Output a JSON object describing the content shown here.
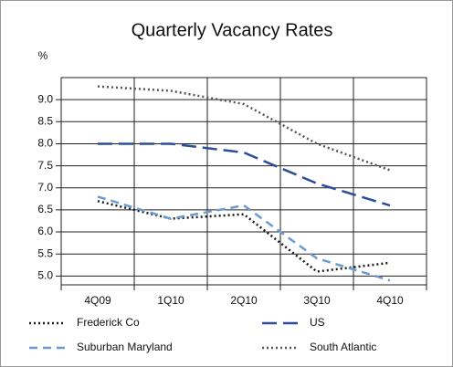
{
  "chart_data": {
    "type": "line",
    "title": "Quarterly Vacancy Rates",
    "y_unit": "%",
    "categories": [
      "4Q09",
      "1Q10",
      "2Q10",
      "3Q10",
      "4Q10"
    ],
    "series": [
      {
        "name": "Frederick Co",
        "color": "#1a1a1a",
        "line_style": "dotted",
        "values": [
          6.7,
          6.3,
          6.4,
          5.1,
          5.3
        ]
      },
      {
        "name": "US",
        "color": "#2a4d9b",
        "line_style": "long-dash",
        "values": [
          8.0,
          8.0,
          7.8,
          7.1,
          6.6
        ]
      },
      {
        "name": "Suburban Maryland",
        "color": "#6a9bcf",
        "line_style": "dash",
        "values": [
          6.8,
          6.3,
          6.6,
          5.4,
          4.9
        ]
      },
      {
        "name": "South Atlantic",
        "color": "#555555",
        "line_style": "dotted",
        "values": [
          9.3,
          9.2,
          8.9,
          8.0,
          7.4
        ]
      }
    ],
    "ylim": [
      4.8,
      9.5
    ],
    "yticks": [
      {
        "value": 5,
        "label": "5.0"
      },
      5.5,
      {
        "value": 6,
        "label": "6.0"
      },
      6.5,
      {
        "value": 7,
        "label": "7.0"
      },
      7.5,
      {
        "value": 8,
        "label": "8.0"
      },
      8.5,
      {
        "value": 9,
        "label": "9.0"
      }
    ],
    "grid": true
  }
}
